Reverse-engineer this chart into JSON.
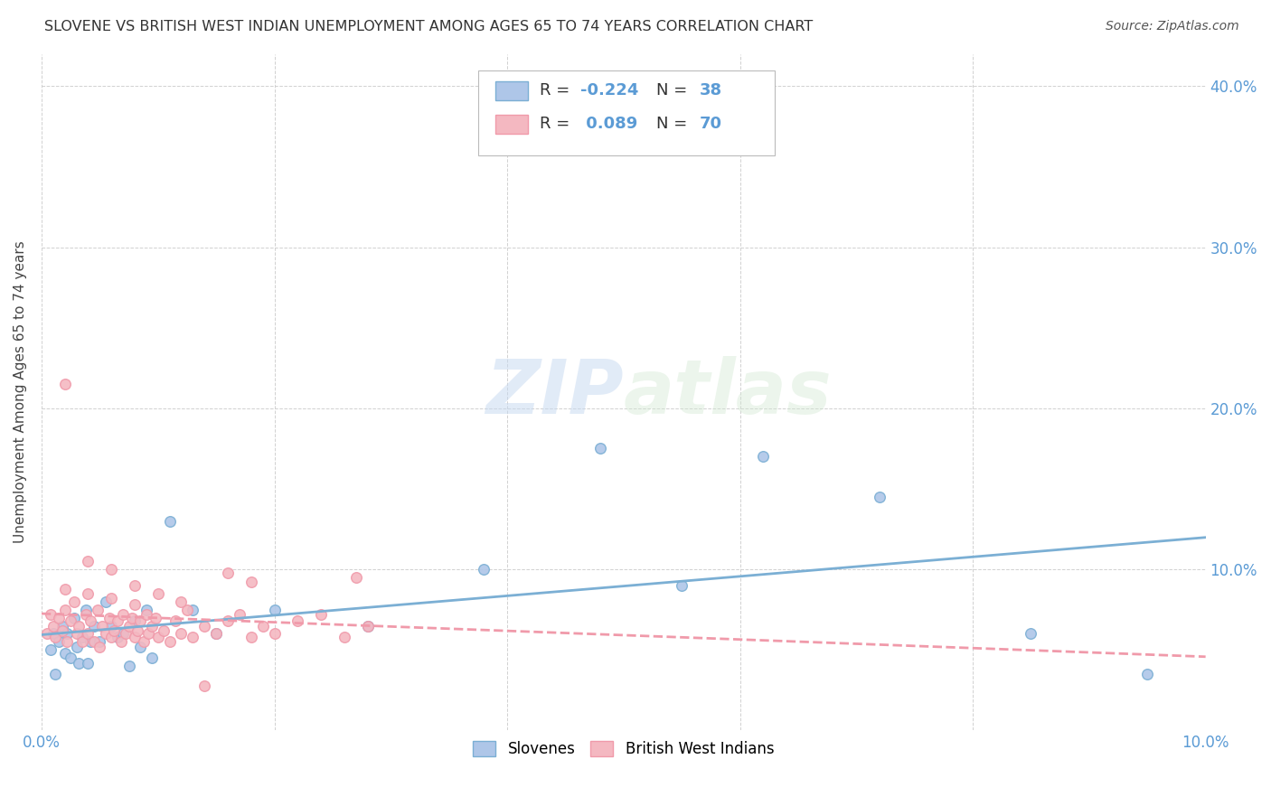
{
  "title": "SLOVENE VS BRITISH WEST INDIAN UNEMPLOYMENT AMONG AGES 65 TO 74 YEARS CORRELATION CHART",
  "source": "Source: ZipAtlas.com",
  "ylabel": "Unemployment Among Ages 65 to 74 years",
  "xlim": [
    0.0,
    0.1
  ],
  "ylim": [
    0.0,
    0.42
  ],
  "xticks": [
    0.0,
    0.02,
    0.04,
    0.06,
    0.08,
    0.1
  ],
  "xtick_labels": [
    "0.0%",
    "",
    "",
    "",
    "",
    "10.0%"
  ],
  "yticks": [
    0.0,
    0.1,
    0.2,
    0.3,
    0.4
  ],
  "ytick_labels_right": [
    "",
    "10.0%",
    "20.0%",
    "30.0%",
    "40.0%"
  ],
  "slovene_color": "#aec6e8",
  "bwi_color": "#f4b8c1",
  "slovene_line_color": "#7bafd4",
  "bwi_line_color": "#f09aaa",
  "R_slovene": "-0.224",
  "N_slovene": "38",
  "R_bwi": "0.089",
  "N_bwi": "70",
  "watermark_zip": "ZIP",
  "watermark_atlas": "atlas",
  "slovene_x": [
    0.0008,
    0.001,
    0.0012,
    0.0015,
    0.0018,
    0.002,
    0.0022,
    0.0025,
    0.0028,
    0.003,
    0.0032,
    0.0035,
    0.0038,
    0.004,
    0.0042,
    0.0045,
    0.005,
    0.0055,
    0.006,
    0.0065,
    0.007,
    0.0075,
    0.008,
    0.0085,
    0.009,
    0.0095,
    0.011,
    0.013,
    0.015,
    0.02,
    0.028,
    0.038,
    0.048,
    0.055,
    0.062,
    0.072,
    0.085,
    0.095
  ],
  "slovene_y": [
    0.05,
    0.06,
    0.035,
    0.055,
    0.065,
    0.048,
    0.06,
    0.045,
    0.07,
    0.052,
    0.042,
    0.058,
    0.075,
    0.042,
    0.055,
    0.065,
    0.055,
    0.08,
    0.065,
    0.058,
    0.06,
    0.04,
    0.068,
    0.052,
    0.075,
    0.045,
    0.13,
    0.075,
    0.06,
    0.075,
    0.065,
    0.1,
    0.175,
    0.09,
    0.17,
    0.145,
    0.06,
    0.035
  ],
  "bwi_x": [
    0.0005,
    0.0008,
    0.001,
    0.0012,
    0.0015,
    0.0018,
    0.002,
    0.0022,
    0.0025,
    0.0028,
    0.003,
    0.0032,
    0.0035,
    0.0038,
    0.004,
    0.0042,
    0.0045,
    0.0048,
    0.005,
    0.0052,
    0.0055,
    0.0058,
    0.006,
    0.0062,
    0.0065,
    0.0068,
    0.007,
    0.0072,
    0.0075,
    0.0078,
    0.008,
    0.0082,
    0.0085,
    0.0088,
    0.009,
    0.0092,
    0.0095,
    0.0098,
    0.01,
    0.0105,
    0.011,
    0.0115,
    0.012,
    0.0125,
    0.013,
    0.014,
    0.015,
    0.016,
    0.017,
    0.018,
    0.019,
    0.02,
    0.022,
    0.024,
    0.026,
    0.028,
    0.002,
    0.004,
    0.006,
    0.008,
    0.01,
    0.012,
    0.014,
    0.016,
    0.027,
    0.018,
    0.002,
    0.004,
    0.006,
    0.008
  ],
  "bwi_y": [
    0.06,
    0.072,
    0.065,
    0.058,
    0.07,
    0.062,
    0.075,
    0.055,
    0.068,
    0.08,
    0.06,
    0.065,
    0.055,
    0.072,
    0.06,
    0.068,
    0.055,
    0.075,
    0.052,
    0.065,
    0.06,
    0.07,
    0.058,
    0.062,
    0.068,
    0.055,
    0.072,
    0.06,
    0.065,
    0.07,
    0.058,
    0.062,
    0.068,
    0.055,
    0.072,
    0.06,
    0.065,
    0.07,
    0.058,
    0.062,
    0.055,
    0.068,
    0.06,
    0.075,
    0.058,
    0.065,
    0.06,
    0.068,
    0.072,
    0.058,
    0.065,
    0.06,
    0.068,
    0.072,
    0.058,
    0.065,
    0.215,
    0.105,
    0.1,
    0.09,
    0.085,
    0.08,
    0.028,
    0.098,
    0.095,
    0.092,
    0.088,
    0.085,
    0.082,
    0.078
  ]
}
